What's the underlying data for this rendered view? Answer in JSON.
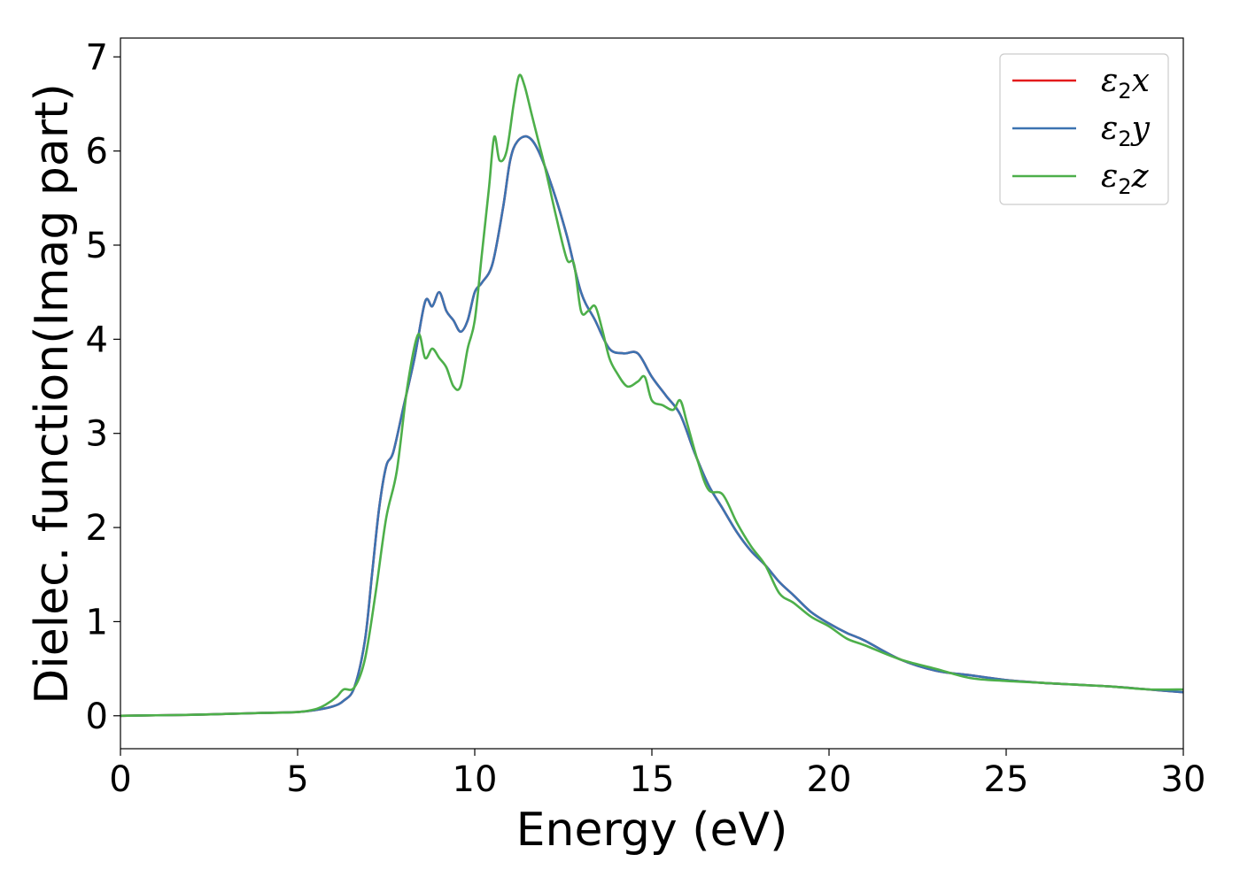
{
  "chart_data": {
    "type": "line",
    "xlabel": "Energy (eV)",
    "ylabel": "Dielec. function(Imag part)",
    "xlim": [
      0,
      30
    ],
    "ylim": [
      -0.35,
      7.2
    ],
    "xticks": [
      0,
      5,
      10,
      15,
      20,
      25,
      30
    ],
    "yticks": [
      0,
      1,
      2,
      3,
      4,
      5,
      6,
      7
    ],
    "grid": false,
    "legend_position": "top-right",
    "series": [
      {
        "name": "ε2x",
        "legend": {
          "base": "ε",
          "sub": "2",
          "tail": "x"
        },
        "color": "#e41a1c",
        "x": [
          0,
          1,
          2,
          3,
          4,
          5,
          5.5,
          6,
          6.3,
          6.6,
          6.9,
          7.1,
          7.3,
          7.5,
          7.7,
          8.0,
          8.3,
          8.6,
          8.8,
          9.0,
          9.2,
          9.4,
          9.6,
          9.8,
          10.0,
          10.2,
          10.5,
          10.8,
          11.0,
          11.2,
          11.5,
          11.8,
          12.2,
          12.6,
          13.0,
          13.4,
          13.8,
          14.2,
          14.6,
          15.0,
          15.4,
          15.8,
          16.2,
          16.6,
          17.0,
          17.4,
          17.8,
          18.2,
          18.6,
          19.0,
          19.5,
          20.0,
          20.5,
          21.0,
          22.0,
          23.0,
          24.0,
          25.0,
          26.0,
          27.0,
          28.0,
          29.0,
          30.0
        ],
        "y": [
          0,
          0.005,
          0.01,
          0.02,
          0.03,
          0.04,
          0.06,
          0.1,
          0.16,
          0.3,
          0.8,
          1.5,
          2.2,
          2.65,
          2.8,
          3.3,
          3.8,
          4.4,
          4.35,
          4.5,
          4.3,
          4.2,
          4.08,
          4.2,
          4.5,
          4.6,
          4.8,
          5.4,
          5.9,
          6.1,
          6.15,
          6.0,
          5.6,
          5.1,
          4.5,
          4.2,
          3.9,
          3.85,
          3.85,
          3.6,
          3.4,
          3.2,
          2.8,
          2.45,
          2.2,
          1.95,
          1.75,
          1.6,
          1.42,
          1.28,
          1.1,
          0.98,
          0.88,
          0.8,
          0.6,
          0.48,
          0.43,
          0.38,
          0.35,
          0.33,
          0.31,
          0.28,
          0.25
        ]
      },
      {
        "name": "ε2y",
        "legend": {
          "base": "ε",
          "sub": "2",
          "tail": "y"
        },
        "color": "#3c73b1",
        "x": [
          0,
          1,
          2,
          3,
          4,
          5,
          5.5,
          6,
          6.3,
          6.6,
          6.9,
          7.1,
          7.3,
          7.5,
          7.7,
          8.0,
          8.3,
          8.6,
          8.8,
          9.0,
          9.2,
          9.4,
          9.6,
          9.8,
          10.0,
          10.2,
          10.5,
          10.8,
          11.0,
          11.2,
          11.5,
          11.8,
          12.2,
          12.6,
          13.0,
          13.4,
          13.8,
          14.2,
          14.6,
          15.0,
          15.4,
          15.8,
          16.2,
          16.6,
          17.0,
          17.4,
          17.8,
          18.2,
          18.6,
          19.0,
          19.5,
          20.0,
          20.5,
          21.0,
          22.0,
          23.0,
          24.0,
          25.0,
          26.0,
          27.0,
          28.0,
          29.0,
          30.0
        ],
        "y": [
          0,
          0.005,
          0.01,
          0.02,
          0.03,
          0.04,
          0.06,
          0.1,
          0.16,
          0.3,
          0.8,
          1.5,
          2.2,
          2.65,
          2.8,
          3.3,
          3.8,
          4.4,
          4.35,
          4.5,
          4.3,
          4.2,
          4.08,
          4.2,
          4.5,
          4.6,
          4.8,
          5.4,
          5.9,
          6.1,
          6.15,
          6.0,
          5.6,
          5.1,
          4.5,
          4.2,
          3.9,
          3.85,
          3.85,
          3.6,
          3.4,
          3.2,
          2.8,
          2.45,
          2.2,
          1.95,
          1.75,
          1.6,
          1.42,
          1.28,
          1.1,
          0.98,
          0.88,
          0.8,
          0.6,
          0.48,
          0.43,
          0.38,
          0.35,
          0.33,
          0.31,
          0.28,
          0.25
        ]
      },
      {
        "name": "ε2z",
        "legend": {
          "base": "ε",
          "sub": "2",
          "tail": "z"
        },
        "color": "#4daf4a",
        "x": [
          0,
          1,
          2,
          3,
          4,
          5,
          5.5,
          5.8,
          6.1,
          6.3,
          6.6,
          6.9,
          7.2,
          7.5,
          7.8,
          8.1,
          8.4,
          8.6,
          8.8,
          9.0,
          9.2,
          9.4,
          9.6,
          9.8,
          10.0,
          10.2,
          10.4,
          10.55,
          10.7,
          10.9,
          11.1,
          11.25,
          11.4,
          11.6,
          11.8,
          12.0,
          12.3,
          12.6,
          12.8,
          13.0,
          13.2,
          13.4,
          13.6,
          13.8,
          14.0,
          14.3,
          14.6,
          14.8,
          15.0,
          15.3,
          15.6,
          15.8,
          16.0,
          16.3,
          16.6,
          17.0,
          17.4,
          17.8,
          18.2,
          18.6,
          19.0,
          19.5,
          20.0,
          20.5,
          21.0,
          22.0,
          23.0,
          24.0,
          25.0,
          26.0,
          27.0,
          28.0,
          29.0,
          30.0
        ],
        "y": [
          0,
          0.005,
          0.01,
          0.02,
          0.03,
          0.04,
          0.07,
          0.12,
          0.2,
          0.28,
          0.3,
          0.6,
          1.3,
          2.1,
          2.6,
          3.5,
          4.05,
          3.8,
          3.9,
          3.8,
          3.7,
          3.5,
          3.5,
          3.9,
          4.2,
          4.9,
          5.6,
          6.15,
          5.9,
          6.0,
          6.5,
          6.8,
          6.7,
          6.4,
          6.1,
          5.8,
          5.3,
          4.85,
          4.8,
          4.3,
          4.3,
          4.35,
          4.1,
          3.8,
          3.65,
          3.5,
          3.55,
          3.6,
          3.35,
          3.3,
          3.25,
          3.35,
          3.1,
          2.7,
          2.4,
          2.35,
          2.05,
          1.8,
          1.6,
          1.3,
          1.2,
          1.05,
          0.95,
          0.82,
          0.75,
          0.6,
          0.5,
          0.4,
          0.37,
          0.35,
          0.33,
          0.31,
          0.28,
          0.28
        ]
      }
    ]
  }
}
